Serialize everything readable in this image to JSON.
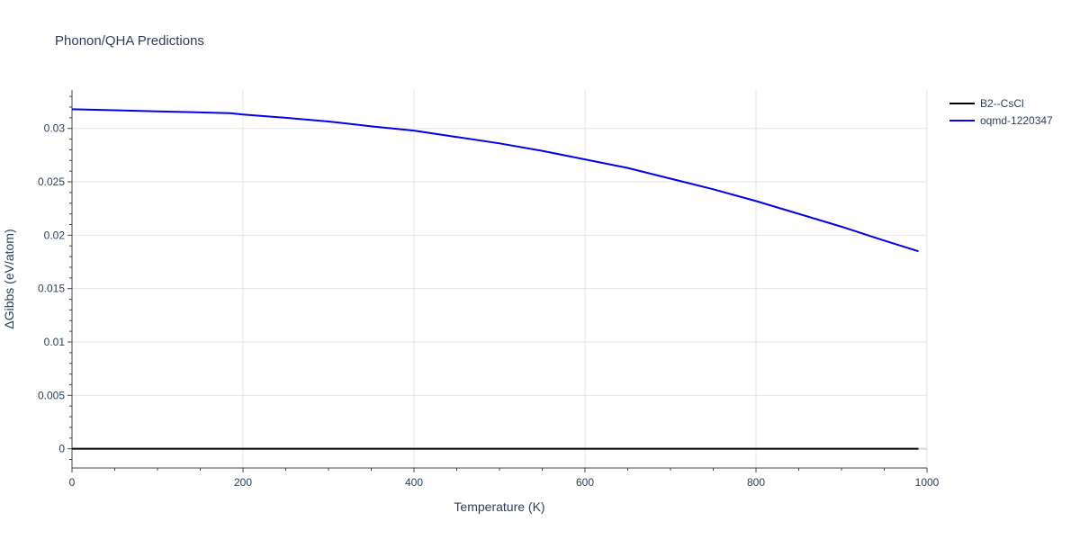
{
  "chart_data": {
    "type": "line",
    "title": "Phonon/QHA Predictions",
    "xlabel": "Temperature (K)",
    "ylabel": "ΔGibbs (eV/atom)",
    "xlim": [
      0,
      1000
    ],
    "ylim": [
      -0.0018,
      0.0336
    ],
    "x_ticks": [
      0,
      200,
      400,
      600,
      800,
      1000
    ],
    "x_tick_labels": [
      "0",
      "200",
      "400",
      "600",
      "800",
      "1000"
    ],
    "y_ticks": [
      0,
      0.005,
      0.01,
      0.015,
      0.02,
      0.025,
      0.03
    ],
    "y_tick_labels": [
      "0",
      "0.005",
      "0.01",
      "0.015",
      "0.02",
      "0.025",
      "0.03"
    ],
    "grid": true,
    "legend_position": "top-right",
    "series": [
      {
        "name": "B2--CsCl",
        "color": "#000000",
        "x": [
          0,
          990
        ],
        "y": [
          0,
          0
        ]
      },
      {
        "name": "oqmd-1220347",
        "color": "#0000ee",
        "x": [
          0,
          50,
          100,
          150,
          185,
          200,
          250,
          300,
          350,
          400,
          450,
          500,
          550,
          600,
          650,
          700,
          750,
          800,
          850,
          900,
          950,
          990
        ],
        "y": [
          0.0318,
          0.0317,
          0.0316,
          0.0315,
          0.03143,
          0.0313,
          0.031,
          0.03065,
          0.0302,
          0.0298,
          0.0292,
          0.0286,
          0.0279,
          0.0271,
          0.0263,
          0.0253,
          0.0243,
          0.0232,
          0.022,
          0.0208,
          0.0195,
          0.0185
        ]
      }
    ]
  }
}
